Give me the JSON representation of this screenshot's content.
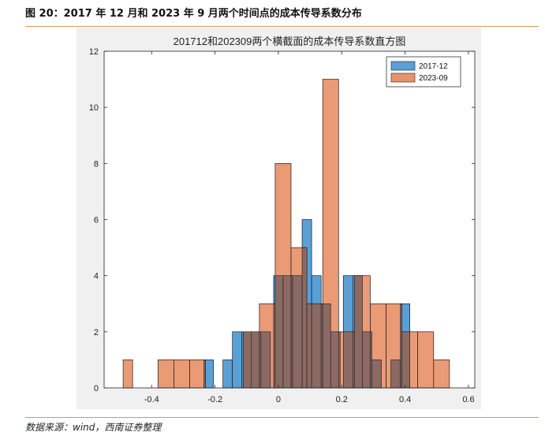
{
  "figure_title": "图 20：2017 年 12 月和 2023 年 9 月两个时间点的成本传导系数分布",
  "source_note": "数据来源：wind，西南证券整理",
  "colors": {
    "series_2017": "#5aa0d6",
    "series_2023": "#e8926a",
    "overlap": "#8c6a64",
    "accent_rule": "#d99a4a"
  },
  "chart_data": {
    "type": "histogram",
    "title": "201712和202309两个横截面的成本传导系数直方图",
    "xlabel": "",
    "ylabel": "",
    "xlim": [
      -0.55,
      0.62
    ],
    "ylim": [
      0,
      12
    ],
    "xticks": [
      -0.4,
      -0.2,
      0,
      0.2,
      0.4,
      0.6
    ],
    "xtick_labels": [
      "-0.4",
      "-0.2",
      "0",
      "0.2",
      "0.4",
      "0.6"
    ],
    "yticks": [
      0,
      2,
      4,
      6,
      8,
      10,
      12
    ],
    "ytick_labels": [
      "0",
      "2",
      "4",
      "6",
      "8",
      "10",
      "12"
    ],
    "legend_position": "top-right",
    "series": [
      {
        "name": "2017-12",
        "bins": [
          {
            "x0": -0.235,
            "x1": -0.205,
            "count": 1
          },
          {
            "x0": -0.175,
            "x1": -0.145,
            "count": 1
          },
          {
            "x0": -0.145,
            "x1": -0.115,
            "count": 2
          },
          {
            "x0": -0.115,
            "x1": -0.085,
            "count": 2
          },
          {
            "x0": -0.085,
            "x1": -0.055,
            "count": 2
          },
          {
            "x0": -0.055,
            "x1": -0.025,
            "count": 2
          },
          {
            "x0": -0.015,
            "x1": 0.015,
            "count": 4
          },
          {
            "x0": 0.015,
            "x1": 0.045,
            "count": 4
          },
          {
            "x0": 0.045,
            "x1": 0.075,
            "count": 4
          },
          {
            "x0": 0.075,
            "x1": 0.105,
            "count": 6
          },
          {
            "x0": 0.105,
            "x1": 0.135,
            "count": 4
          },
          {
            "x0": 0.135,
            "x1": 0.165,
            "count": 3
          },
          {
            "x0": 0.165,
            "x1": 0.195,
            "count": 2
          },
          {
            "x0": 0.205,
            "x1": 0.235,
            "count": 4
          },
          {
            "x0": 0.235,
            "x1": 0.265,
            "count": 4
          },
          {
            "x0": 0.265,
            "x1": 0.295,
            "count": 2
          },
          {
            "x0": 0.295,
            "x1": 0.325,
            "count": 1
          },
          {
            "x0": 0.355,
            "x1": 0.385,
            "count": 1
          },
          {
            "x0": 0.385,
            "x1": 0.415,
            "count": 3
          }
        ]
      },
      {
        "name": "2023-09",
        "bins": [
          {
            "x0": -0.49,
            "x1": -0.46,
            "count": 1
          },
          {
            "x0": -0.38,
            "x1": -0.33,
            "count": 1
          },
          {
            "x0": -0.33,
            "x1": -0.28,
            "count": 1
          },
          {
            "x0": -0.28,
            "x1": -0.23,
            "count": 1
          },
          {
            "x0": -0.11,
            "x1": -0.06,
            "count": 2
          },
          {
            "x0": -0.06,
            "x1": -0.01,
            "count": 3
          },
          {
            "x0": -0.01,
            "x1": 0.04,
            "count": 8
          },
          {
            "x0": 0.04,
            "x1": 0.09,
            "count": 5
          },
          {
            "x0": 0.09,
            "x1": 0.14,
            "count": 3
          },
          {
            "x0": 0.14,
            "x1": 0.19,
            "count": 11
          },
          {
            "x0": 0.19,
            "x1": 0.24,
            "count": 2
          },
          {
            "x0": 0.24,
            "x1": 0.29,
            "count": 4
          },
          {
            "x0": 0.29,
            "x1": 0.34,
            "count": 3
          },
          {
            "x0": 0.34,
            "x1": 0.39,
            "count": 3
          },
          {
            "x0": 0.39,
            "x1": 0.44,
            "count": 2
          },
          {
            "x0": 0.44,
            "x1": 0.49,
            "count": 2
          },
          {
            "x0": 0.49,
            "x1": 0.54,
            "count": 1
          }
        ]
      }
    ]
  }
}
